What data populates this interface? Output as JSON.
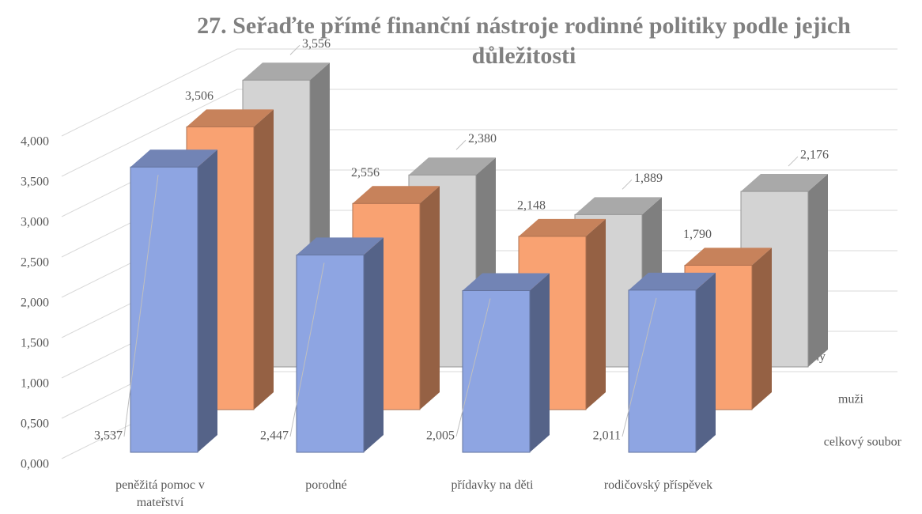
{
  "chart_data": {
    "type": "bar3d",
    "title": "27. Seřaďte přímé finanční nástroje rodinné politiky podle jejich důležitosti",
    "categories": [
      "peněžitá pomoc v mateřství",
      "porodné",
      "přídavky na děti",
      "rodičovský příspěvek"
    ],
    "series": [
      {
        "name": "celkový soubor",
        "color": "#8ea5e2",
        "values": [
          3.537,
          2.447,
          2.005,
          2.011
        ],
        "value_labels": [
          "3,537",
          "2,447",
          "2,005",
          "2,011"
        ]
      },
      {
        "name": "muži",
        "color": "#f9a272",
        "values": [
          3.506,
          2.556,
          2.148,
          1.79
        ],
        "value_labels": [
          "3,506",
          "2,556",
          "2,148",
          "1,790"
        ]
      },
      {
        "name": "ženy",
        "color": "#d3d3d3",
        "values": [
          3.556,
          2.38,
          1.889,
          2.176
        ],
        "value_labels": [
          "3,556",
          "2,380",
          "1,889",
          "2,176"
        ]
      }
    ],
    "ylim": [
      0,
      4
    ],
    "yticks": [
      {
        "value": 0,
        "label": "0,000"
      },
      {
        "value": 0.5,
        "label": "0,500"
      },
      {
        "value": 1,
        "label": "1,000"
      },
      {
        "value": 1.5,
        "label": "1,500"
      },
      {
        "value": 2,
        "label": "2,000"
      },
      {
        "value": 2.5,
        "label": "2,500"
      },
      {
        "value": 3,
        "label": "3,000"
      },
      {
        "value": 3.5,
        "label": "3,500"
      },
      {
        "value": 4,
        "label": "4,000"
      }
    ],
    "grid": true
  }
}
